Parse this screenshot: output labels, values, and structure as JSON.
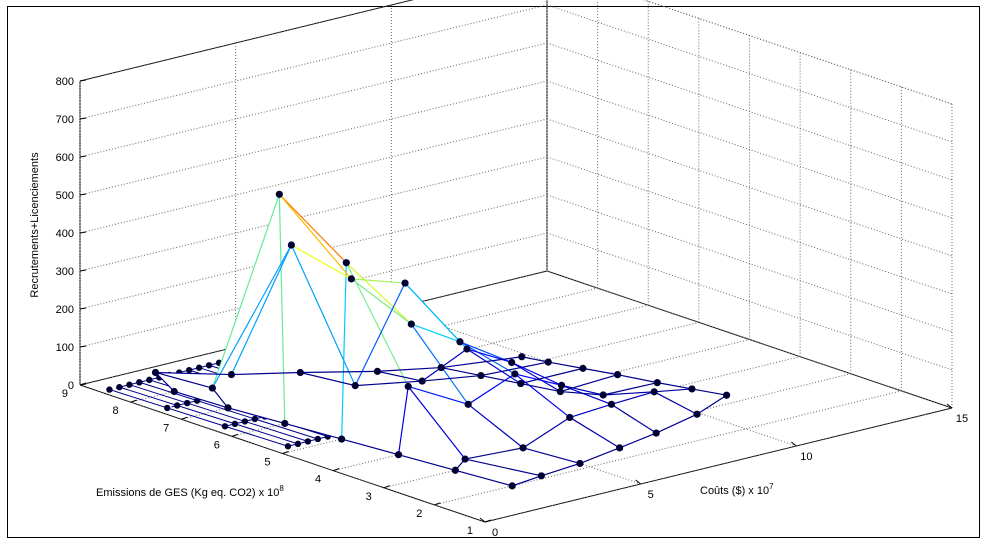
{
  "chart_data": {
    "type": "surface3d",
    "title": "",
    "xlabel": "Coûts ($) x 10",
    "xlabel_exponent": "7",
    "ylabel": "Emissions de GES (Kg eq. CO2) x 10",
    "ylabel_exponent": "8",
    "zlabel": "Recrutements+Licenciements",
    "x_ticks": [
      "0",
      "5",
      "10",
      "15"
    ],
    "y_ticks": [
      "1",
      "2",
      "3",
      "4",
      "5",
      "6",
      "7",
      "8",
      "9"
    ],
    "z_ticks": [
      "0",
      "100",
      "200",
      "300",
      "400",
      "500",
      "600",
      "700",
      "800"
    ],
    "xlim": [
      0,
      15
    ],
    "ylim": [
      1,
      9
    ],
    "zlim": [
      0,
      800
    ],
    "grid": true,
    "colors": {
      "low": "#00008f",
      "midlow": "#00bfff",
      "mid": "#ffff00",
      "high": "#ff0000",
      "marker": "#000033"
    },
    "surface": {
      "columns": [
        [
          [
            2.5,
            2.0,
            0
          ],
          [
            2.3,
            3.0,
            0
          ],
          [
            2.1,
            4.0,
            0
          ],
          [
            1.9,
            5.0,
            0
          ],
          [
            1.7,
            6.0,
            0
          ],
          [
            1.5,
            7.0,
            0
          ],
          [
            1.4,
            8.0,
            0
          ]
        ],
        [
          [
            3.6,
            2.1,
            0
          ],
          [
            3.1,
            3.3,
            0
          ],
          [
            2.9,
            4.3,
            150
          ],
          [
            2.7,
            5.4,
            430
          ],
          [
            2.5,
            6.6,
            560
          ],
          [
            2.3,
            7.8,
            0
          ],
          [
            2.1,
            8.8,
            0
          ]
        ],
        [
          [
            5.0,
            2.2,
            0
          ],
          [
            4.8,
            3.2,
            0
          ],
          [
            4.5,
            4.1,
            80
          ],
          [
            4.3,
            5.1,
            250
          ],
          [
            4.0,
            6.1,
            330
          ],
          [
            3.7,
            7.1,
            380
          ],
          [
            3.4,
            8.1,
            0
          ]
        ],
        [
          [
            6.6,
            2.4,
            0
          ],
          [
            6.3,
            3.2,
            50
          ],
          [
            6.0,
            4.1,
            130
          ],
          [
            5.7,
            5.0,
            180
          ],
          [
            5.4,
            5.9,
            300
          ],
          [
            5.1,
            6.7,
            0
          ],
          [
            4.8,
            7.6,
            0
          ]
        ],
        [
          [
            8.1,
            2.6,
            0
          ],
          [
            7.8,
            3.3,
            50
          ],
          [
            7.5,
            4.1,
            70
          ],
          [
            7.2,
            4.9,
            100
          ],
          [
            6.9,
            5.6,
            110
          ],
          [
            6.6,
            6.3,
            0
          ],
          [
            6.3,
            7.0,
            0
          ]
        ],
        [
          [
            9.9,
            2.9,
            0
          ],
          [
            9.5,
            3.5,
            40
          ],
          [
            9.0,
            4.2,
            10
          ],
          [
            8.6,
            4.8,
            0
          ],
          [
            8.3,
            5.4,
            0
          ],
          [
            8.0,
            6.0,
            0
          ],
          [
            7.7,
            6.6,
            0
          ]
        ],
        [
          [
            11.5,
            3.3,
            0
          ],
          [
            11.2,
            3.8,
            0
          ],
          [
            10.9,
            4.3,
            0
          ],
          [
            10.6,
            4.9,
            0
          ],
          [
            10.3,
            5.4,
            0
          ],
          [
            10.0,
            5.9,
            0
          ],
          [
            9.8,
            6.3,
            0
          ]
        ]
      ]
    }
  }
}
